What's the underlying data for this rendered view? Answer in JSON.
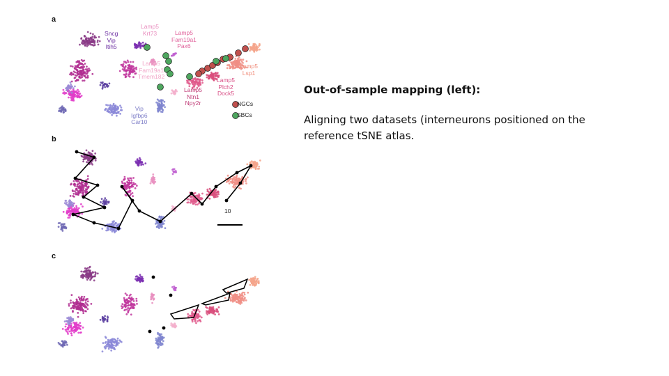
{
  "figure": {
    "panels": [
      {
        "letter": "a"
      },
      {
        "letter": "b"
      },
      {
        "letter": "c"
      }
    ],
    "cluster_labels": [
      {
        "text": "Sncg\nVip\nItih5",
        "color": "#6a2ca0"
      },
      {
        "text": "Lamp5\nKrt73",
        "color": "#e98fbf"
      },
      {
        "text": "Lamp5\nFam19a1\nPax6",
        "color": "#e0609a"
      },
      {
        "text": "Lamp5\nFam19a1\nTmem182",
        "color": "#f2a6c8"
      },
      {
        "text": "Lamp5\nLsp1",
        "color": "#f08e7c"
      },
      {
        "text": "Lamp5\nPlch2\nDock5",
        "color": "#d94f86"
      },
      {
        "text": "Lamp5\nNtn1\nNpy2r",
        "color": "#c03f79"
      },
      {
        "text": "Vip\nIgfbp6\nCar10",
        "color": "#7f7fc8"
      }
    ],
    "legend": [
      {
        "label": "NGCs",
        "color": "#c0504d"
      },
      {
        "label": "SBCs",
        "color": "#4ea65f"
      }
    ],
    "scale_bar_label": "10"
  },
  "text": {
    "title": "Out-of-sample mapping (left):",
    "body": "Aligning two datasets (interneurons positioned on the reference tSNE atlas."
  }
}
